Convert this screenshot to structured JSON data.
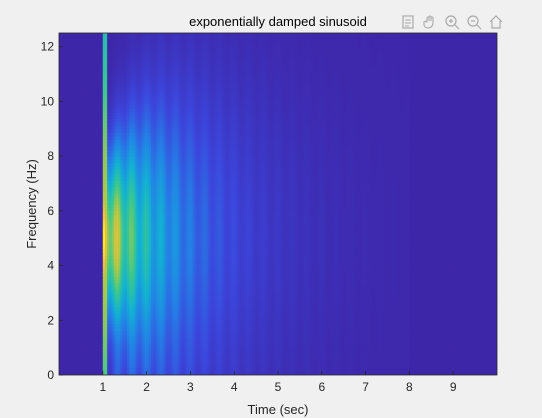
{
  "figure": {
    "toolbar": [
      {
        "icon": "export-icon"
      },
      {
        "icon": "pan-hand-icon"
      },
      {
        "icon": "zoom-in-icon"
      },
      {
        "icon": "zoom-out-icon"
      },
      {
        "icon": "home-icon"
      }
    ]
  },
  "chart_data": {
    "type": "heatmap",
    "title": "exponentially damped sinusoid",
    "xlabel": "Time (sec)",
    "ylabel": "Frequency (Hz)",
    "xlim": [
      0,
      10
    ],
    "ylim": [
      0,
      12.5
    ],
    "xticks": [
      1,
      2,
      3,
      4,
      5,
      6,
      7,
      8,
      9
    ],
    "yticks": [
      0,
      2,
      4,
      6,
      8,
      10,
      12
    ],
    "colormap": "parula",
    "signal": {
      "onset_time_sec": 1,
      "end_time_sec": 8,
      "center_frequency_hz": 5,
      "decay": "exponential"
    },
    "colors": {
      "low": "#3e26a8",
      "mid": "#20b2aa",
      "high": "#f9fb0e",
      "background": "#f0f0f0"
    }
  }
}
